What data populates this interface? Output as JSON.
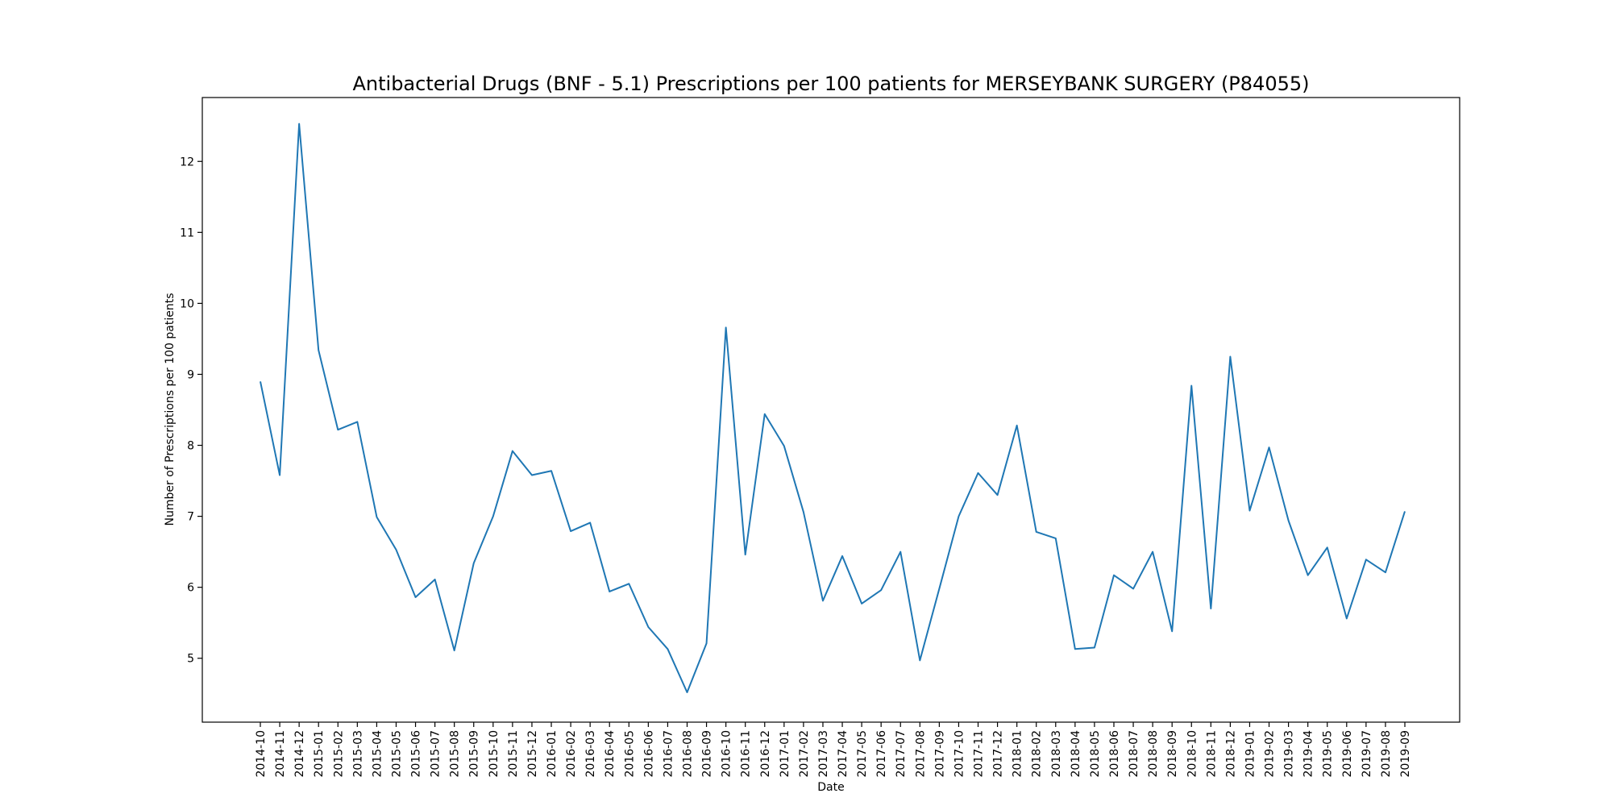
{
  "chart_data": {
    "type": "line",
    "title": "Antibacterial Drugs (BNF - 5.1) Prescriptions per 100 patients for MERSEYBANK SURGERY (P84055)",
    "xlabel": "Date",
    "ylabel": "Number of Prescriptions per 100 patients",
    "ylim": [
      4.1,
      12.9
    ],
    "yticks": [
      5,
      6,
      7,
      8,
      9,
      10,
      11,
      12
    ],
    "grid": false,
    "line_color": "#1f77b4",
    "x": [
      "2014-10",
      "2014-11",
      "2014-12",
      "2015-01",
      "2015-02",
      "2015-03",
      "2015-04",
      "2015-05",
      "2015-06",
      "2015-07",
      "2015-08",
      "2015-09",
      "2015-10",
      "2015-11",
      "2015-12",
      "2016-01",
      "2016-02",
      "2016-03",
      "2016-04",
      "2016-05",
      "2016-06",
      "2016-07",
      "2016-08",
      "2016-09",
      "2016-10",
      "2016-11",
      "2016-12",
      "2017-01",
      "2017-02",
      "2017-03",
      "2017-04",
      "2017-05",
      "2017-06",
      "2017-07",
      "2017-08",
      "2017-09",
      "2017-10",
      "2017-11",
      "2017-12",
      "2018-01",
      "2018-02",
      "2018-03",
      "2018-04",
      "2018-05",
      "2018-06",
      "2018-07",
      "2018-08",
      "2018-09",
      "2018-10",
      "2018-11",
      "2018-12",
      "2019-01",
      "2019-02",
      "2019-03",
      "2019-04",
      "2019-05",
      "2019-06",
      "2019-07",
      "2019-08",
      "2019-09"
    ],
    "series": [
      {
        "values": [
          8.9,
          7.58,
          12.53,
          9.34,
          8.22,
          8.33,
          6.99,
          6.53,
          5.86,
          6.11,
          5.11,
          6.34,
          7.0,
          7.92,
          7.58,
          7.64,
          6.79,
          6.91,
          5.94,
          6.05,
          5.44,
          5.13,
          4.52,
          5.21,
          9.66,
          6.46,
          8.44,
          7.99,
          7.06,
          5.81,
          6.44,
          5.77,
          5.96,
          6.5,
          4.97,
          5.98,
          7.0,
          7.61,
          7.3,
          8.28,
          6.78,
          6.69,
          5.13,
          5.15,
          6.17,
          5.98,
          6.5,
          5.38,
          8.84,
          5.7,
          9.25,
          7.08,
          7.97,
          6.94,
          6.17,
          6.56,
          5.56,
          6.39,
          6.21,
          7.07
        ]
      }
    ]
  }
}
